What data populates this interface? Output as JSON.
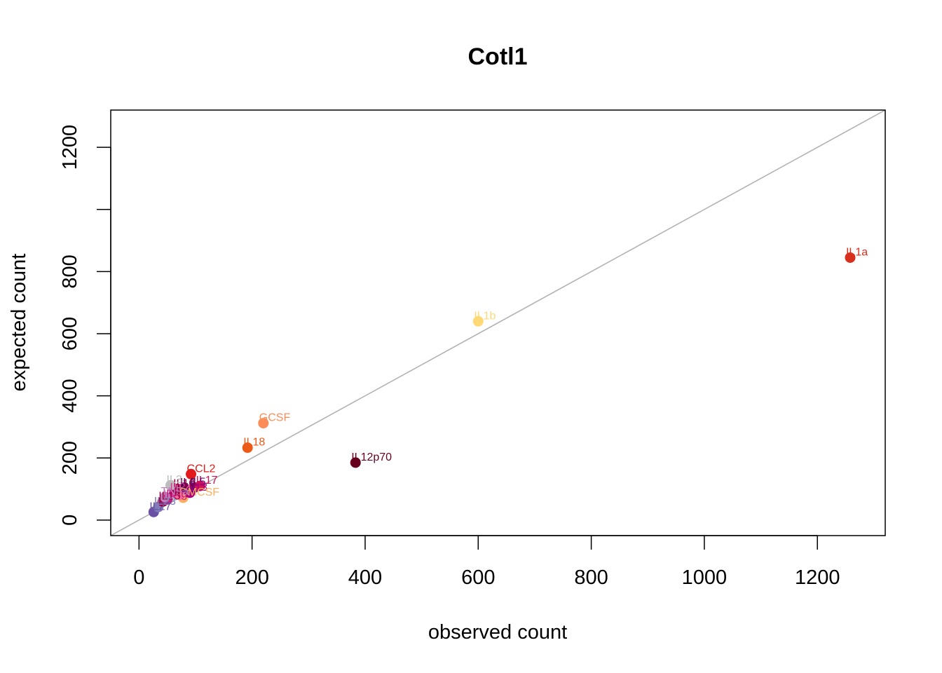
{
  "chart_data": {
    "type": "scatter",
    "title": "Cotl1",
    "xlabel": "observed count",
    "ylabel": "expected count",
    "xlim": [
      -50,
      1320
    ],
    "ylim": [
      -50,
      1320
    ],
    "x_ticks": [
      0,
      200,
      400,
      600,
      800,
      1000,
      1200
    ],
    "y_ticks": [
      0,
      200,
      400,
      600,
      800,
      1000,
      1200
    ],
    "y_tick_labels_shown": [
      "0",
      "200",
      "400",
      "600",
      "800",
      "",
      "1200"
    ],
    "reference_line": "y = x",
    "reference_line_color": "#b3b3b3",
    "grid": false,
    "points": [
      {
        "label": "IL1a",
        "x": 1258,
        "y": 845,
        "color": "#d7301f"
      },
      {
        "label": "IL1b",
        "x": 600,
        "y": 640,
        "color": "#fed976"
      },
      {
        "label": "GCSF",
        "x": 220,
        "y": 312,
        "color": "#fc8d59"
      },
      {
        "label": "IL18",
        "x": 192,
        "y": 233,
        "color": "#ec5a18"
      },
      {
        "label": "IL12p70",
        "x": 383,
        "y": 185,
        "color": "#67001f"
      },
      {
        "label": "CCL2",
        "x": 92,
        "y": 148,
        "color": "#e31a1c"
      },
      {
        "label": "IL17",
        "x": 108,
        "y": 110,
        "color": "#ce1256"
      },
      {
        "label": "IL5",
        "x": 98,
        "y": 105,
        "color": "#7a0177"
      },
      {
        "label": "IL13",
        "x": 90,
        "y": 88,
        "color": "#ae017e"
      },
      {
        "label": "IL6",
        "x": 80,
        "y": 104,
        "color": "#4d004b"
      },
      {
        "label": "IL10",
        "x": 68,
        "y": 100,
        "color": "#980043"
      },
      {
        "label": "IL2",
        "x": 62,
        "y": 88,
        "color": "#dd3497"
      },
      {
        "label": "IL4",
        "x": 72,
        "y": 82,
        "color": "#f768a1"
      },
      {
        "label": "IL3",
        "x": 56,
        "y": 112,
        "color": "#bdbdbd"
      },
      {
        "label": "GMCSF",
        "x": 78,
        "y": 72,
        "color": "#fdae61"
      },
      {
        "label": "IFNg",
        "x": 50,
        "y": 66,
        "color": "#c51b7d"
      },
      {
        "label": "TNFa",
        "x": 46,
        "y": 74,
        "color": "#bc80bd"
      },
      {
        "label": "IL15",
        "x": 42,
        "y": 60,
        "color": "#9e0142"
      },
      {
        "label": "IL23",
        "x": 34,
        "y": 42,
        "color": "#807dba"
      },
      {
        "label": "IL27",
        "x": 26,
        "y": 26,
        "color": "#6a51a3"
      }
    ]
  }
}
